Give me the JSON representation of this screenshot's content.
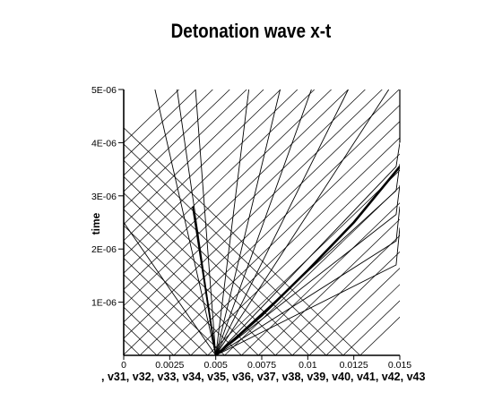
{
  "title": "Detonation wave x-t",
  "legend_text": ", v31, v32, v33, v34, v35, v36, v37, v38, v39, v40, v41, v42, v43",
  "chart_data": {
    "type": "line",
    "title": "Detonation wave x-t",
    "xlabel": "",
    "ylabel": "time",
    "xlim": [
      0,
      0.015
    ],
    "ylim": [
      0,
      5e-06
    ],
    "xticks": [
      0,
      0.0025,
      0.005,
      0.0075,
      0.01,
      0.0125,
      0.015
    ],
    "xtick_labels": [
      "0",
      "0.0025",
      "0.005",
      "0.0075",
      "0.01",
      "0.0125",
      "0.015"
    ],
    "yticks": [
      1e-06,
      2e-06,
      3e-06,
      4e-06,
      5e-06
    ],
    "ytick_labels": [
      "1E-06",
      "2E-06",
      "3E-06",
      "4E-06",
      "5E-06"
    ],
    "series_labels": [
      "v31",
      "v32",
      "v33",
      "v34",
      "v35",
      "v36",
      "v37",
      "v38",
      "v39",
      "v40",
      "v41",
      "v42",
      "v43"
    ],
    "series": [
      {
        "role": "detonation-front",
        "x": [
          0.005,
          0.0075,
          0.01,
          0.0125,
          0.015
        ],
        "y": [
          0,
          7.5e-07,
          1.6e-06,
          2.5e-06,
          3.55e-06
        ]
      },
      {
        "role": "reaction-path",
        "x": [
          0.005,
          0.00375
        ],
        "y": [
          0,
          2.8e-06
        ]
      },
      {
        "role": "left-running",
        "x": [
          0.005,
          0
        ],
        "y": [
          0,
          2.5e-06
        ]
      },
      {
        "role": "left-running",
        "x": [
          0.005,
          0.0017
        ],
        "y": [
          0,
          5e-06
        ]
      },
      {
        "role": "left-running",
        "x": [
          0.005,
          0.0029
        ],
        "y": [
          0,
          5e-06
        ]
      },
      {
        "role": "left-running",
        "x": [
          0.005,
          0.0039
        ],
        "y": [
          0,
          5e-06
        ]
      },
      {
        "role": "right-running",
        "x": [
          0.005,
          0.0068
        ],
        "y": [
          0,
          5e-06
        ]
      },
      {
        "role": "right-running",
        "x": [
          0.005,
          0.0085
        ],
        "y": [
          0,
          5e-06
        ]
      },
      {
        "role": "right-running",
        "x": [
          0.005,
          0.0102
        ],
        "y": [
          0,
          5e-06
        ]
      },
      {
        "role": "right-running",
        "x": [
          0.005,
          0.0122
        ],
        "y": [
          0,
          5e-06
        ]
      },
      {
        "role": "right-running",
        "x": [
          0.005,
          0.0144
        ],
        "y": [
          0,
          5e-06
        ]
      },
      {
        "role": "right-running",
        "x": [
          0.005,
          0.0148,
          0.015
        ],
        "y": [
          0,
          3.55e-06,
          4e-06
        ]
      },
      {
        "role": "right-running",
        "x": [
          0.005,
          0.0148,
          0.015
        ],
        "y": [
          0,
          3.1e-06,
          3.6e-06
        ]
      },
      {
        "role": "right-running",
        "x": [
          0.005,
          0.0148,
          0.015
        ],
        "y": [
          0,
          2.65e-06,
          3.2e-06
        ]
      },
      {
        "role": "right-running",
        "x": [
          0.005,
          0.0148,
          0.015
        ],
        "y": [
          0,
          2.15e-06,
          2.8e-06
        ]
      },
      {
        "role": "right-running",
        "x": [
          0.005,
          0.0148,
          0.015
        ],
        "y": [
          0,
          1.7e-06,
          2.4e-06
        ]
      }
    ]
  }
}
